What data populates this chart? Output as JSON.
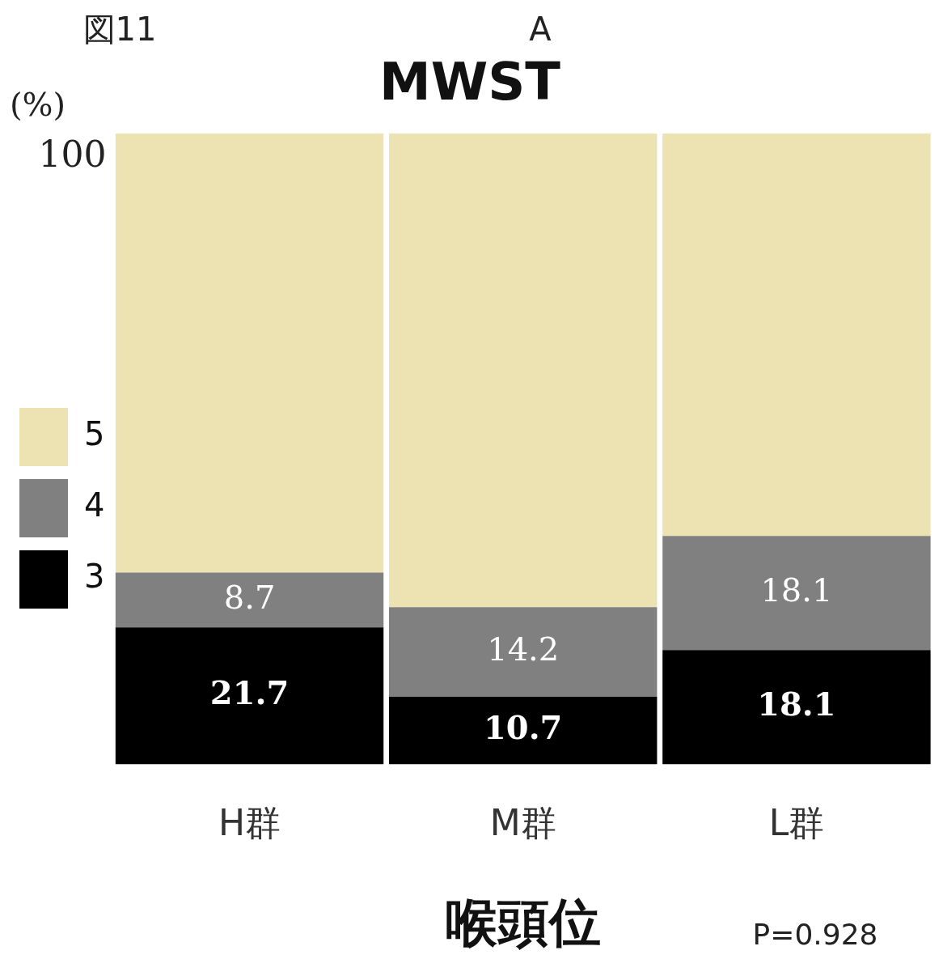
{
  "chart_data": {
    "type": "bar",
    "title": "MWST",
    "xlabel": "喉頭位",
    "ylabel": "(%)",
    "annotations": [
      "図11",
      "A",
      "P=0.928",
      "100"
    ],
    "categories": [
      "H群",
      "M群",
      "L群"
    ],
    "stacked": true,
    "grid": false,
    "legend": "left",
    "series": [
      {
        "name": "3",
        "color": "#000000",
        "values": [
          21.7,
          10.7,
          18.1
        ],
        "value_labels": [
          "21.7",
          "10.7",
          "18.1"
        ]
      },
      {
        "name": "4",
        "color": "#808080",
        "values": [
          8.7,
          14.2,
          18.1
        ],
        "value_labels": [
          "8.7",
          "14.2",
          "18.1"
        ]
      },
      {
        "name": "5",
        "color": "#ede2b2",
        "values": [
          69.6,
          75.1,
          63.8
        ],
        "value_labels": [
          null,
          null,
          null
        ]
      }
    ]
  }
}
